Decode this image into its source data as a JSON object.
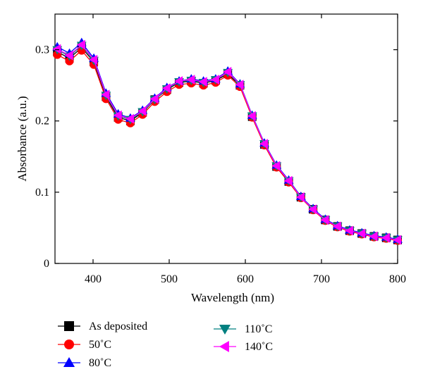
{
  "chart_data": {
    "type": "line",
    "title": "",
    "xlabel": "Wavelength (nm)",
    "ylabel": "Absorbance (a.u.)",
    "xlim": [
      350,
      800
    ],
    "ylim": [
      0,
      0.35
    ],
    "xticks": [
      {
        "value": 400,
        "label": "400"
      },
      {
        "value": 500,
        "label": "500"
      },
      {
        "value": 600,
        "label": "600"
      },
      {
        "value": 700,
        "label": "700"
      },
      {
        "value": 800,
        "label": "800"
      }
    ],
    "yticks": [
      {
        "value": 0,
        "label": "0"
      },
      {
        "value": 0.1,
        "label": "0.1"
      },
      {
        "value": 0.2,
        "label": "0.2"
      },
      {
        "value": 0.3,
        "label": "0.3"
      }
    ],
    "grid": false,
    "legend_position": "bottom",
    "x": [
      353,
      369,
      385,
      401,
      417,
      433,
      449,
      465,
      481,
      497,
      513,
      529,
      545,
      561,
      577,
      593,
      609,
      625,
      641,
      657,
      673,
      689,
      705,
      721,
      737,
      753,
      769,
      785,
      800
    ],
    "series": [
      {
        "name": "As deposited",
        "color": "#000000",
        "marker": "square",
        "values": [
          0.297,
          0.288,
          0.303,
          0.283,
          0.234,
          0.205,
          0.2,
          0.212,
          0.23,
          0.244,
          0.254,
          0.256,
          0.253,
          0.257,
          0.266,
          0.25,
          0.206,
          0.167,
          0.136,
          0.115,
          0.093,
          0.076,
          0.061,
          0.052,
          0.046,
          0.042,
          0.038,
          0.036,
          0.033
        ]
      },
      {
        "name": "50˚C",
        "color": "#ff0000",
        "marker": "circle",
        "values": [
          0.293,
          0.284,
          0.299,
          0.279,
          0.231,
          0.202,
          0.197,
          0.209,
          0.227,
          0.241,
          0.251,
          0.253,
          0.25,
          0.254,
          0.264,
          0.248,
          0.205,
          0.166,
          0.135,
          0.114,
          0.092,
          0.075,
          0.06,
          0.051,
          0.045,
          0.041,
          0.037,
          0.035,
          0.032
        ]
      },
      {
        "name": "80˚C",
        "color": "#0000ff",
        "marker": "triangle-up",
        "values": [
          0.304,
          0.295,
          0.31,
          0.288,
          0.239,
          0.21,
          0.204,
          0.215,
          0.232,
          0.247,
          0.256,
          0.259,
          0.256,
          0.259,
          0.27,
          0.252,
          0.208,
          0.169,
          0.138,
          0.117,
          0.094,
          0.077,
          0.062,
          0.053,
          0.047,
          0.043,
          0.039,
          0.037,
          0.034
        ]
      },
      {
        "name": "110˚C",
        "color": "#008080",
        "marker": "triangle-down",
        "values": [
          0.3,
          0.291,
          0.306,
          0.285,
          0.236,
          0.207,
          0.202,
          0.213,
          0.23,
          0.245,
          0.255,
          0.257,
          0.254,
          0.258,
          0.268,
          0.251,
          0.207,
          0.168,
          0.137,
          0.116,
          0.093,
          0.076,
          0.061,
          0.052,
          0.046,
          0.042,
          0.038,
          0.036,
          0.033
        ]
      },
      {
        "name": "140˚C",
        "color": "#ff00ff",
        "marker": "triangle-left",
        "values": [
          0.301,
          0.292,
          0.307,
          0.286,
          0.237,
          0.208,
          0.203,
          0.214,
          0.231,
          0.246,
          0.256,
          0.258,
          0.255,
          0.258,
          0.269,
          0.251,
          0.207,
          0.168,
          0.137,
          0.116,
          0.093,
          0.076,
          0.061,
          0.052,
          0.046,
          0.042,
          0.038,
          0.036,
          0.033
        ]
      }
    ]
  }
}
